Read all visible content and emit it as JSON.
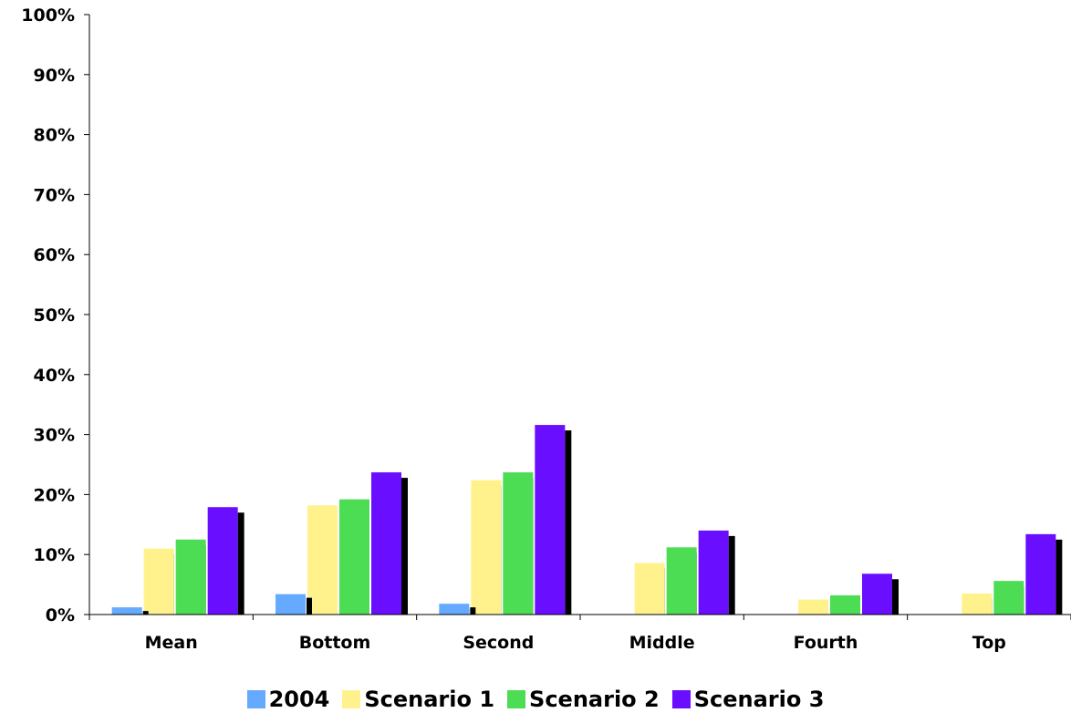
{
  "chart_data": {
    "type": "bar",
    "categories": [
      "Mean",
      "Bottom",
      "Second",
      "Middle",
      "Fourth",
      "Top"
    ],
    "series": [
      {
        "name": "2004",
        "color": "#66aaff",
        "values": [
          1.2,
          3.4,
          1.8,
          0,
          0,
          0
        ]
      },
      {
        "name": "Scenario 1",
        "color": "#fff28c",
        "values": [
          11.0,
          18.2,
          22.4,
          8.6,
          2.5,
          3.5
        ]
      },
      {
        "name": "Scenario 2",
        "color": "#4ddd55",
        "values": [
          12.5,
          19.2,
          23.7,
          11.2,
          3.2,
          5.6
        ]
      },
      {
        "name": "Scenario 3",
        "color": "#6a0eff",
        "values": [
          17.9,
          23.7,
          31.6,
          14.0,
          6.8,
          13.4
        ]
      }
    ],
    "y_ticks": [
      "0%",
      "10%",
      "20%",
      "30%",
      "40%",
      "50%",
      "60%",
      "70%",
      "80%",
      "90%",
      "100%"
    ],
    "ylim": [
      0,
      100
    ],
    "grid": false,
    "legend_position": "bottom",
    "title": "",
    "xlabel": "",
    "ylabel": ""
  }
}
